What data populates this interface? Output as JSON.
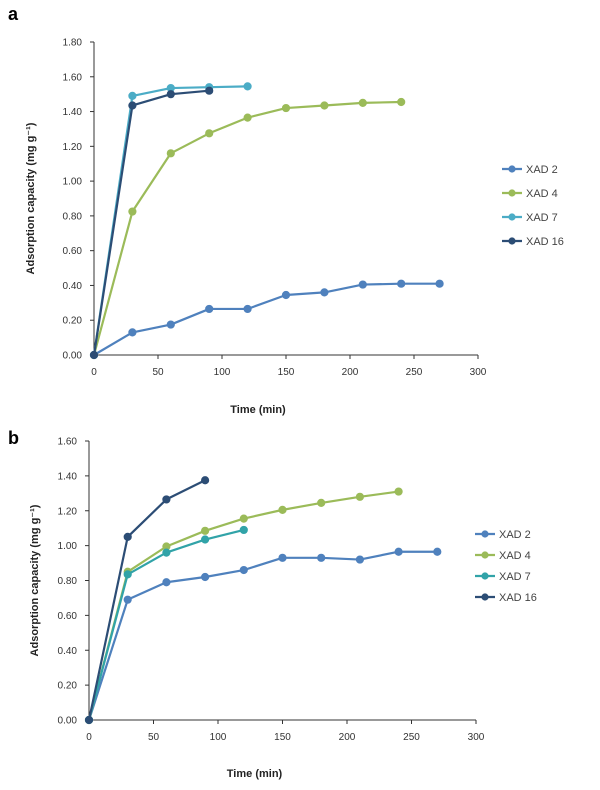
{
  "panels": [
    {
      "label": "a"
    },
    {
      "label": "b"
    }
  ],
  "chart_data": [
    {
      "type": "line",
      "panel": "a",
      "title": "",
      "xlabel": "Time (min)",
      "ylabel": "Adsorption capacity (mg g⁻¹)",
      "xlim": [
        0,
        300
      ],
      "ylim": [
        0,
        1.8
      ],
      "xticks": [
        0,
        50,
        100,
        150,
        200,
        250,
        300
      ],
      "yticks": [
        0,
        0.2,
        0.4,
        0.6,
        0.8,
        1.0,
        1.2,
        1.4,
        1.6,
        1.8
      ],
      "xtick_labels": [
        "0",
        "50",
        "100",
        "150",
        "200",
        "250",
        "300"
      ],
      "ytick_labels": [
        "0.00",
        "0.20",
        "0.40",
        "0.60",
        "0.80",
        "1.00",
        "1.20",
        "1.40",
        "1.60",
        "1.80"
      ],
      "legend_position": "right",
      "series": [
        {
          "name": "XAD 2",
          "color": "#4f81bd",
          "x": [
            0,
            30,
            60,
            90,
            120,
            150,
            180,
            210,
            240,
            270
          ],
          "y": [
            0,
            0.13,
            0.175,
            0.265,
            0.265,
            0.345,
            0.36,
            0.405,
            0.41,
            0.41
          ]
        },
        {
          "name": "XAD 4",
          "color": "#9bbb59",
          "x": [
            0,
            30,
            60,
            90,
            120,
            150,
            180,
            210,
            240
          ],
          "y": [
            0,
            0.825,
            1.16,
            1.275,
            1.365,
            1.42,
            1.435,
            1.45,
            1.455
          ]
        },
        {
          "name": "XAD 7",
          "color": "#4bacc6",
          "x": [
            0,
            30,
            60,
            90,
            120
          ],
          "y": [
            0,
            1.49,
            1.535,
            1.54,
            1.545
          ]
        },
        {
          "name": "XAD 16",
          "color": "#2c4d75",
          "x": [
            0,
            30,
            60,
            90
          ],
          "y": [
            0,
            1.435,
            1.5,
            1.52
          ]
        }
      ]
    },
    {
      "type": "line",
      "panel": "b",
      "title": "",
      "xlabel": "Time (min)",
      "ylabel": "Adsorption capacity (mg g⁻¹)",
      "xlim": [
        0,
        300
      ],
      "ylim": [
        0,
        1.6
      ],
      "xticks": [
        0,
        50,
        100,
        150,
        200,
        250,
        300
      ],
      "yticks": [
        0,
        0.2,
        0.4,
        0.6,
        0.8,
        1.0,
        1.2,
        1.4,
        1.6
      ],
      "xtick_labels": [
        "0",
        "50",
        "100",
        "150",
        "200",
        "250",
        "300"
      ],
      "ytick_labels": [
        "0.00",
        "0.20",
        "0.40",
        "0.60",
        "0.80",
        "1.00",
        "1.20",
        "1.40",
        "1.60"
      ],
      "legend_position": "right",
      "series": [
        {
          "name": "XAD 2",
          "color": "#4f81bd",
          "x": [
            0,
            30,
            60,
            90,
            120,
            150,
            180,
            210,
            240,
            270
          ],
          "y": [
            0,
            0.69,
            0.79,
            0.82,
            0.86,
            0.93,
            0.93,
            0.92,
            0.965,
            0.965
          ]
        },
        {
          "name": "XAD 4",
          "color": "#9bbb59",
          "x": [
            0,
            30,
            60,
            90,
            120,
            150,
            180,
            210,
            240
          ],
          "y": [
            0,
            0.85,
            0.995,
            1.085,
            1.155,
            1.205,
            1.245,
            1.28,
            1.31
          ]
        },
        {
          "name": "XAD 7",
          "color": "#31a3a8",
          "x": [
            0,
            30,
            60,
            90,
            120
          ],
          "y": [
            0,
            0.835,
            0.96,
            1.035,
            1.09
          ]
        },
        {
          "name": "XAD 16",
          "color": "#2c4d75",
          "x": [
            0,
            30,
            60,
            90
          ],
          "y": [
            0,
            1.05,
            1.265,
            1.375
          ]
        }
      ]
    }
  ]
}
